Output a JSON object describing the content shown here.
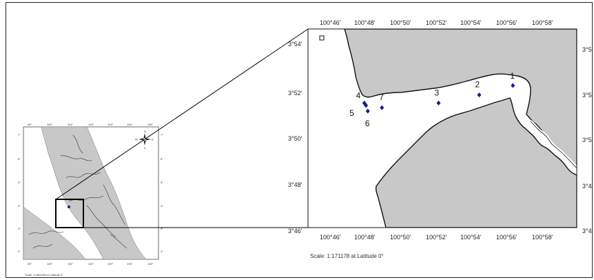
{
  "detail_map": {
    "x_ticks": [
      "100°46'",
      "100°48'",
      "100°50'",
      "100°52'",
      "100°54'",
      "100°56'",
      "100°58'"
    ],
    "y_ticks_left": [
      "3°54'",
      "3°52'",
      "3°50'",
      "3°48'",
      "3°46'"
    ],
    "y_ticks_right": [
      "3°5",
      "3°5",
      "3°5",
      "3°4",
      "3°4"
    ],
    "scale_text": "Scale:  1:171178 at Latitude 0°",
    "stations": [
      {
        "label": "1",
        "lon": 100.9467,
        "lat": 3.87
      },
      {
        "label": "2",
        "lon": 100.915,
        "lat": 3.8633
      },
      {
        "label": "3",
        "lon": 100.8767,
        "lat": 3.8575
      },
      {
        "label": "7",
        "lon": 100.8233,
        "lat": 3.8542
      },
      {
        "label": "4",
        "lon": 100.8067,
        "lat": 3.8575
      },
      {
        "label": "5",
        "lon": 100.8083,
        "lat": 3.8558
      },
      {
        "label": "6",
        "lon": 100.81,
        "lat": 3.8517
      }
    ],
    "land_color": "#c8c8c8",
    "station_color": "#1a1a8c"
  },
  "overview_map": {
    "x_ticks": [
      "99°",
      "100°",
      "101°",
      "102°",
      "103°",
      "104°",
      "105°"
    ],
    "y_ticks": [
      "7°",
      "6°",
      "5°",
      "4°",
      "3°",
      "2°"
    ],
    "scale_text": "Scale:  1:4524253 at Latitude 0°",
    "compass_labels": [
      "N",
      "S",
      "E",
      "W"
    ],
    "land_color": "#c8c8c8"
  }
}
